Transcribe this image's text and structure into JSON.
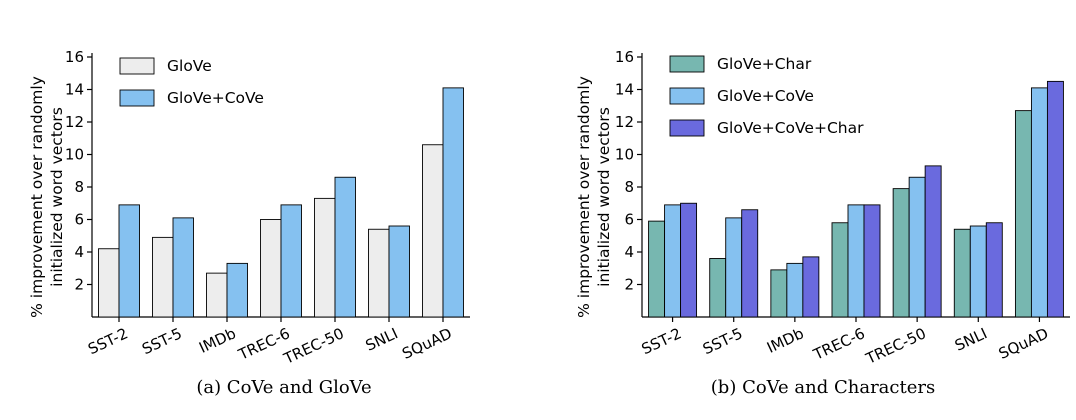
{
  "chart_data": [
    {
      "type": "bar",
      "caption": "(a) CoVe and GloVe",
      "ylabel_lines": [
        "% improvement over randomly",
        "initialized word vectors"
      ],
      "ylim": [
        0,
        16
      ],
      "yticks": [
        2,
        4,
        6,
        8,
        10,
        12,
        14,
        16
      ],
      "categories": [
        "SST-2",
        "SST-5",
        "IMDb",
        "TREC-6",
        "TREC-50",
        "SNLI",
        "SQuAD"
      ],
      "series": [
        {
          "name": "GloVe",
          "color": "#ededed",
          "values": [
            4.2,
            4.9,
            2.7,
            6.0,
            7.3,
            5.4,
            10.6
          ]
        },
        {
          "name": "GloVe+CoVe",
          "color": "#85c1f0",
          "values": [
            6.9,
            6.1,
            3.3,
            6.9,
            8.6,
            5.6,
            14.1
          ]
        }
      ],
      "legend_position": "top-left"
    },
    {
      "type": "bar",
      "caption": "(b) CoVe and Characters",
      "ylabel_lines": [
        "% improvement over randomly",
        "initialized word vectors"
      ],
      "ylim": [
        0,
        16
      ],
      "yticks": [
        2,
        4,
        6,
        8,
        10,
        12,
        14,
        16
      ],
      "categories": [
        "SST-2",
        "SST-5",
        "IMDb",
        "TREC-6",
        "TREC-50",
        "SNLI",
        "SQuAD"
      ],
      "series": [
        {
          "name": "GloVe+Char",
          "color": "#77b7b0",
          "values": [
            5.9,
            3.6,
            2.9,
            5.8,
            7.9,
            5.4,
            12.7
          ]
        },
        {
          "name": "GloVe+CoVe",
          "color": "#85c1f0",
          "values": [
            6.9,
            6.1,
            3.3,
            6.9,
            8.6,
            5.6,
            14.1
          ]
        },
        {
          "name": "GloVe+CoVe+Char",
          "color": "#6a6ade",
          "values": [
            7.0,
            6.6,
            3.7,
            6.9,
            9.3,
            5.8,
            14.5
          ]
        }
      ],
      "legend_position": "top-left"
    }
  ]
}
